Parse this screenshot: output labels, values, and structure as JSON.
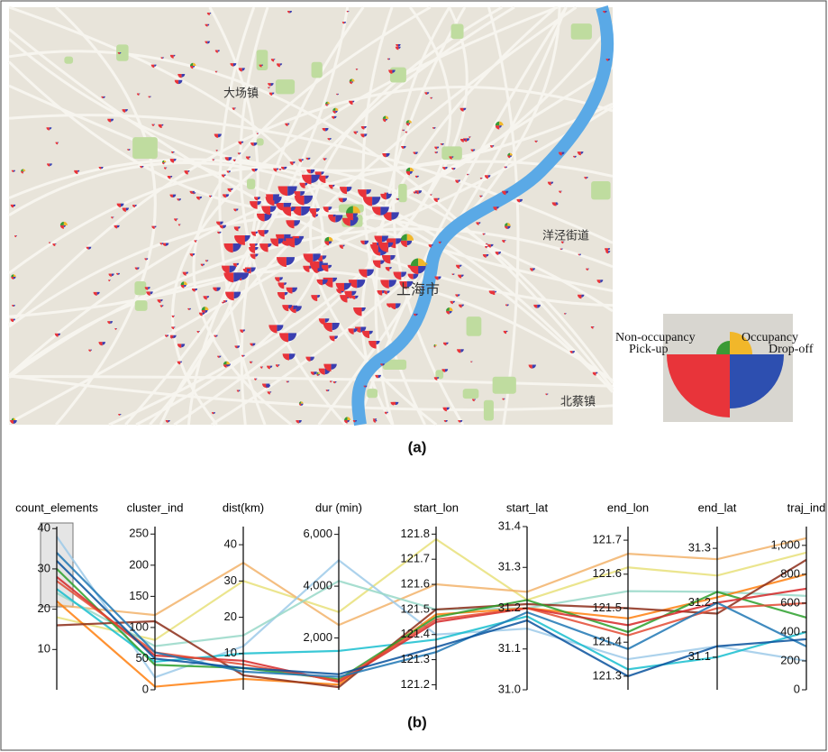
{
  "map": {
    "place_labels": [
      "大场镇",
      "上海市",
      "洋泾街道",
      "北蔡镇"
    ],
    "legend": {
      "non_occupancy": "Non-occupancy",
      "occupancy": "Occupancy",
      "pick_up": "Pick-up",
      "drop_off": "Drop-off"
    },
    "caption": "(a)"
  },
  "chart_data": {
    "type": "parallel",
    "caption": "(b)",
    "axes": [
      {
        "name": "count_elements",
        "ylim": [
          0,
          40.5
        ],
        "yticks": [
          10,
          20,
          30,
          40
        ]
      },
      {
        "name": "cluster_ind",
        "ylim": [
          0,
          262
        ],
        "yticks": [
          0,
          50,
          100,
          150,
          200,
          250
        ]
      },
      {
        "name": "dist(km)",
        "ylim": [
          0,
          45
        ],
        "yticks": [
          10,
          20,
          30,
          40
        ]
      },
      {
        "name": "dur (min)",
        "ylim": [
          0,
          6300
        ],
        "yticks": [
          {
            "value": 2000,
            "label": "2,000"
          },
          {
            "value": 4000,
            "label": "4,000"
          },
          {
            "value": 6000,
            "label": "6,000"
          }
        ]
      },
      {
        "name": "start_lon",
        "ylim": [
          121.18,
          121.83
        ],
        "yticks": [
          121.2,
          121.3,
          121.4,
          121.5,
          121.6,
          121.7,
          121.8
        ]
      },
      {
        "name": "start_lat",
        "ylim": [
          31.0,
          31.4
        ],
        "yticks": [
          {
            "value": 31.0,
            "label": "31.0"
          },
          31.1,
          31.2,
          31.3,
          31.4
        ]
      },
      {
        "name": "end_lon",
        "ylim": [
          121.26,
          121.74
        ],
        "yticks": [
          121.3,
          121.4,
          121.5,
          121.6,
          121.7
        ]
      },
      {
        "name": "end_lat",
        "ylim": [
          31.04,
          31.34
        ],
        "yticks": [
          31.1,
          31.2,
          31.3
        ]
      },
      {
        "name": "traj_ind",
        "ylim": [
          0,
          1130
        ],
        "yticks": [
          0,
          200,
          400,
          600,
          800,
          {
            "value": 1000,
            "label": "1,000"
          }
        ]
      }
    ],
    "series": [
      {
        "color": "#e8e07a",
        "values": [
          18,
          80,
          30,
          3000,
          121.78,
          31.22,
          121.62,
          31.25,
          950
        ]
      },
      {
        "color": "#f2b36b",
        "values": [
          21,
          120,
          35,
          2500,
          121.6,
          31.24,
          121.66,
          31.28,
          1050
        ]
      },
      {
        "color": "#9ecae9",
        "values": [
          38,
          20,
          12,
          5000,
          121.4,
          31.15,
          121.35,
          31.12,
          200
        ]
      },
      {
        "color": "#98d8c8",
        "values": [
          24,
          70,
          15,
          4200,
          121.5,
          31.2,
          121.55,
          31.22,
          650
        ]
      },
      {
        "color": "#17becf",
        "values": [
          25,
          45,
          10,
          1500,
          121.38,
          31.18,
          121.32,
          31.1,
          400
        ]
      },
      {
        "color": "#ff7f0e",
        "values": [
          22,
          5,
          3,
          200,
          121.48,
          31.2,
          121.47,
          31.21,
          800
        ]
      },
      {
        "color": "#8c2d19",
        "values": [
          16,
          110,
          4,
          100,
          121.5,
          31.21,
          121.5,
          31.18,
          900
        ]
      },
      {
        "color": "#2ca02c",
        "values": [
          30,
          40,
          6,
          400,
          121.47,
          31.22,
          121.43,
          31.22,
          500
        ]
      },
      {
        "color": "#d62728",
        "values": [
          28,
          55,
          8,
          300,
          121.45,
          31.2,
          121.45,
          31.2,
          700
        ]
      },
      {
        "color": "#e34a33",
        "values": [
          27,
          60,
          7,
          350,
          121.46,
          31.2,
          121.42,
          31.19,
          600
        ]
      },
      {
        "color": "#1f77b4",
        "values": [
          34,
          60,
          5,
          500,
          121.33,
          31.19,
          121.38,
          31.2,
          300
        ]
      },
      {
        "color": "#08519c",
        "values": [
          32,
          50,
          6,
          600,
          121.35,
          31.17,
          121.3,
          31.12,
          350
        ]
      }
    ]
  }
}
